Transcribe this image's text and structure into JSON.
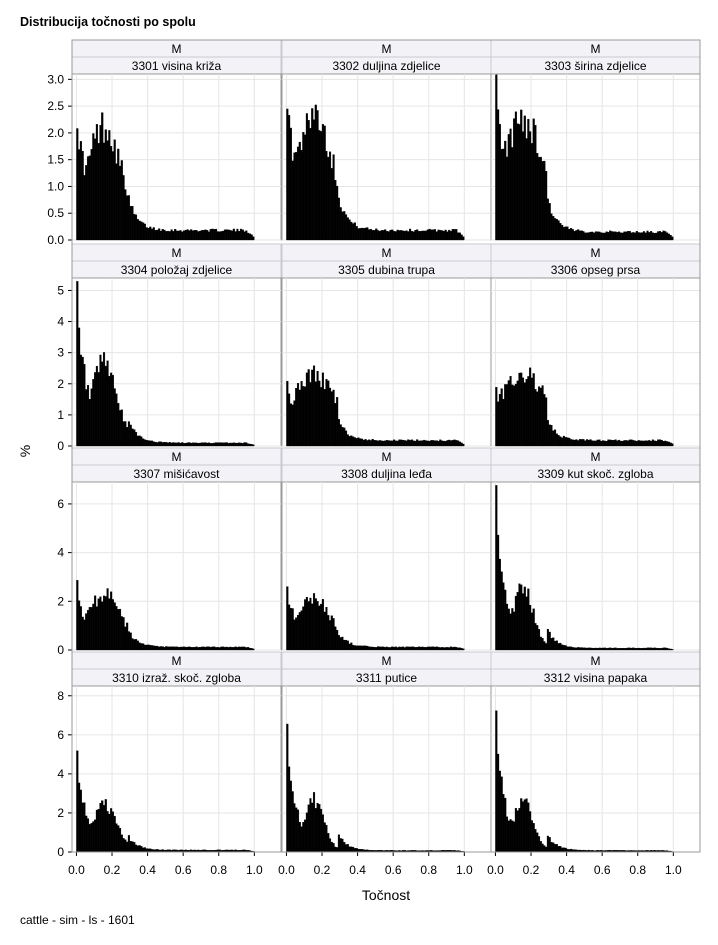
{
  "title": "Distribucija točnosti po spolu",
  "footnote": "cattle - sim - ls - 1601",
  "colors": {
    "bar": "#000000",
    "grid": "#e6e6e6",
    "header_bg": "#f3f3f7",
    "frame": "#999999",
    "axis_text": "#000000"
  },
  "chart_data": {
    "type": "bar",
    "subtype": "histogram panel grid",
    "xlabel": "Točnost",
    "ylabel": "%",
    "x_ticks": [
      "0.0",
      "0.2",
      "0.4",
      "0.6",
      "0.8",
      "1.0"
    ],
    "xlim": [
      -0.025,
      1.15
    ],
    "grid": true,
    "rows": [
      {
        "ylim": [
          0,
          3.1
        ],
        "y_ticks": [
          "0.0",
          "0.5",
          "1.0",
          "1.5",
          "2.0",
          "2.5",
          "3.0"
        ]
      },
      {
        "ylim": [
          0,
          5.4
        ],
        "y_ticks": [
          "0",
          "1",
          "2",
          "3",
          "4",
          "5"
        ]
      },
      {
        "ylim": [
          0,
          6.9
        ],
        "y_ticks": [
          "0",
          "2",
          "4",
          "6"
        ]
      },
      {
        "ylim": [
          0,
          8.5
        ],
        "y_ticks": [
          "0",
          "2",
          "4",
          "6",
          "8"
        ]
      }
    ],
    "panels": [
      {
        "group": "M",
        "label": "3301 visina križa",
        "peak": 2.45,
        "peak2": 1.95,
        "tail": 0.18,
        "decay": 0.3,
        "bins": 100
      },
      {
        "group": "M",
        "label": "3302 duljina zdjelice",
        "peak": 2.75,
        "peak2": 2.2,
        "tail": 0.18,
        "decay": 0.32,
        "bins": 100
      },
      {
        "group": "M",
        "label": "3303 širina zdjelice",
        "peak": 2.9,
        "peak2": 2.1,
        "tail": 0.15,
        "decay": 0.38,
        "bins": 100
      },
      {
        "group": "M",
        "label": "3304 položaj zdjelice",
        "peak": 5.2,
        "peak2": 2.55,
        "tail": 0.1,
        "decay": 0.22,
        "bins": 100
      },
      {
        "group": "M",
        "label": "3305 dubina trupa",
        "peak": 2.05,
        "peak2": 2.1,
        "tail": 0.18,
        "decay": 0.4,
        "bins": 100
      },
      {
        "group": "M",
        "label": "3306 opseg prsa",
        "peak": 1.9,
        "peak2": 2.15,
        "tail": 0.18,
        "decay": 0.42,
        "bins": 100
      },
      {
        "group": "M",
        "label": "3307 mišićavost",
        "peak": 2.65,
        "peak2": 2.15,
        "tail": 0.12,
        "decay": 0.3,
        "bins": 100
      },
      {
        "group": "M",
        "label": "3308 duljina leđa",
        "peak": 2.7,
        "peak2": 2.0,
        "tail": 0.12,
        "decay": 0.3,
        "bins": 100
      },
      {
        "group": "M",
        "label": "3309 kut skoč. zgloba",
        "peak": 6.6,
        "peak2": 2.45,
        "tail": 0.08,
        "decay": 0.18,
        "bins": 100
      },
      {
        "group": "M",
        "label": "3310 izraž. skoč. zgloba",
        "peak": 5.0,
        "peak2": 2.3,
        "tail": 0.1,
        "decay": 0.22,
        "bins": 100
      },
      {
        "group": "M",
        "label": "3311 putice",
        "peak": 7.7,
        "peak2": 2.6,
        "tail": 0.08,
        "decay": 0.17,
        "bins": 100
      },
      {
        "group": "M",
        "label": "3312 visina papaka",
        "peak": 8.0,
        "peak2": 2.6,
        "tail": 0.08,
        "decay": 0.17,
        "bins": 100
      }
    ]
  }
}
